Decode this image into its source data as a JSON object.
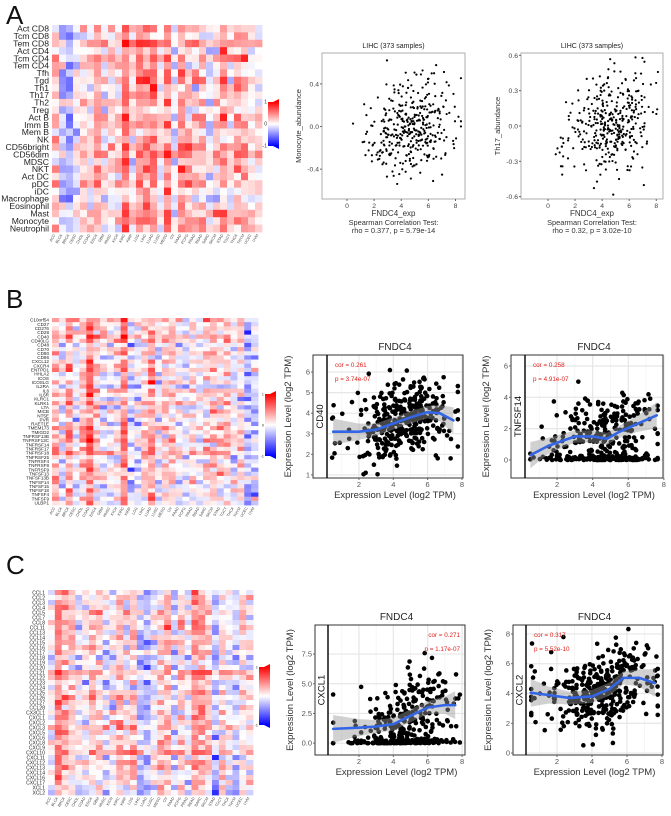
{
  "panel_labels": [
    "A",
    "B",
    "C"
  ],
  "chart_data": [
    {
      "id": "heatmap-a",
      "type": "heatmap",
      "rows": [
        "Act CD8",
        "Tcm CD8",
        "Tem CD8",
        "Act CD4",
        "Tcm CD4",
        "Tem CD4",
        "Tfh",
        "Tgd",
        "Th1",
        "Th17",
        "Th2",
        "Treg",
        "Act B",
        "Imm B",
        "Mem B",
        "NK",
        "CD56bright",
        "CD56dim",
        "MDSC",
        "NKT",
        "Act DC",
        "pDC",
        "iDC",
        "Macrophage",
        "Eosinophil",
        "Mast",
        "Monocyte",
        "Neutrophil"
      ],
      "columns": [
        "ACC",
        "BLCA",
        "BRCA",
        "CESC",
        "CHOL",
        "COAD",
        "ESCA",
        "GBM",
        "HNSC",
        "KICH",
        "KIRC",
        "KIRP",
        "LGG",
        "LIHC",
        "LUAD",
        "LUSC",
        "MESO",
        "OV",
        "PAAD",
        "PCPG",
        "PRAD",
        "READ",
        "SARC",
        "SKCM",
        "STAD",
        "TGCT",
        "THCA",
        "THYM",
        "UCEC",
        "UVM"
      ],
      "colorbar": {
        "max": "1",
        "mid": "0",
        "min": "-1"
      },
      "value_range": [
        -1,
        1
      ],
      "colors": {
        "low": "#0000ff",
        "mid": "#ffffff",
        "high": "#ff0000"
      }
    },
    {
      "id": "scatter-a1",
      "type": "scatter",
      "style": "timer",
      "title": "LIHC (373 samples)",
      "xlabel": "FNDC4_exp",
      "ylabel": "Monocyte_abundance",
      "caption": [
        "Spearman Correlation Test:",
        "rho = 0.377, p = 5.79e-14"
      ],
      "n": 373,
      "rho": 0.377,
      "xlim": [
        -1.84,
        8.7
      ],
      "ylim": [
        -0.68,
        0.69
      ],
      "xticks": [
        "0",
        "2",
        "4",
        "6",
        "8"
      ],
      "yticks": [
        "-0.4",
        "0.0",
        "0.4"
      ]
    },
    {
      "id": "scatter-a2",
      "type": "scatter",
      "style": "timer",
      "title": "LIHC (373 samples)",
      "xlabel": "FNDC4_exp",
      "ylabel": "Th17_abundance",
      "caption": [
        "Spearman Correlation Test:",
        "rho = 0.32, p = 3.02e-10"
      ],
      "n": 373,
      "rho": 0.32,
      "xlim": [
        -2.0,
        8.5
      ],
      "ylim": [
        -0.62,
        0.62
      ],
      "xticks": [
        "0",
        "2",
        "4",
        "6",
        "8"
      ],
      "yticks": [
        "-0.6",
        "-0.3",
        "0.0",
        "0.3",
        "0.6"
      ]
    },
    {
      "id": "heatmap-b",
      "type": "heatmap",
      "rows": [
        "C10orf54",
        "CD27",
        "CD276",
        "CD28",
        "CD40",
        "CD40LG",
        "CD48",
        "CD70",
        "CD80",
        "CD86",
        "CXCL12",
        "CXCR4",
        "ENTPD1",
        "HHLA2",
        "ICOS",
        "ICOSLG",
        "IL2RA",
        "IL6",
        "IL6R",
        "KLRC1",
        "KLRK1",
        "LTA",
        "MICB",
        "NT5E",
        "PVR",
        "RAET1E",
        "TMEM173",
        "TMIGD2",
        "TNFRSF13B",
        "TNFRSF13C",
        "TNFRSF14",
        "TNFRSF17",
        "TNFRSF18",
        "TNFRSF25",
        "TNFRSF4",
        "TNFRSF8",
        "TNFRSF9",
        "TNFSF13",
        "TNFSF13B",
        "TNFSF14",
        "TNFSF15",
        "TNFSF18",
        "TNFSF4",
        "TNFSF9",
        "ULBP1"
      ],
      "columns": [
        "ACC",
        "BLCA",
        "BRCA",
        "CESC",
        "CHOL",
        "COAD",
        "ESCA",
        "GBM",
        "HNSC",
        "KICH",
        "KIRC",
        "KIRP",
        "LGG",
        "LIHC",
        "LUAD",
        "LUSC",
        "MESO",
        "OV",
        "PAAD",
        "PCPG",
        "PRAD",
        "READ",
        "SARC",
        "SKCM",
        "STAD",
        "TGCT",
        "THCA",
        "THYM",
        "UCEC",
        "UVM"
      ],
      "colorbar": {
        "max": "1",
        "mid": "0",
        "min": "-1"
      },
      "value_range": [
        -1,
        1
      ],
      "colors": {
        "low": "#0000ff",
        "mid": "#ffffff",
        "high": "#ff0000"
      }
    },
    {
      "id": "scatter-b1",
      "type": "scatter",
      "style": "gepia",
      "title": "FNDC4",
      "xlabel": "Expression Level (log2 TPM)",
      "ylabel": "Expression Level (log2 TPM)",
      "strip": "CD40",
      "stats": [
        "cor = 0.261",
        "p = 3.74e-07"
      ],
      "stats_position": "top-left",
      "n": 373,
      "xlim": [
        0.14,
        8.06
      ],
      "ylim": [
        0.85,
        6.83
      ],
      "xticks": [
        "2",
        "4",
        "6",
        "8"
      ],
      "yticks": [
        "1",
        "2",
        "3",
        "4",
        "5",
        "6"
      ],
      "trend": [
        [
          0.5,
          3.1
        ],
        [
          2,
          3.1
        ],
        [
          3,
          3.2
        ],
        [
          4,
          3.5
        ],
        [
          5,
          3.8
        ],
        [
          6,
          4.05
        ],
        [
          6.7,
          4.0
        ],
        [
          7.5,
          3.65
        ]
      ],
      "line_color": "#3366e6"
    },
    {
      "id": "scatter-b2",
      "type": "scatter",
      "style": "gepia",
      "title": "FNDC4",
      "xlabel": "Expression Level (log2 TPM)",
      "ylabel": "Expression Level (log2 TPM)",
      "strip": "TNFSF14",
      "stats": [
        "cor = 0.258",
        "p = 4.91e-07"
      ],
      "stats_position": "top-left",
      "n": 373,
      "xlim": [
        0.2,
        7.95
      ],
      "ylim": [
        -1.15,
        6.7
      ],
      "xticks": [
        "2",
        "4",
        "6",
        "8"
      ],
      "yticks": [
        "0",
        "2",
        "4",
        "6"
      ],
      "trend": [
        [
          0.5,
          0.3
        ],
        [
          1.5,
          0.9
        ],
        [
          3,
          1.5
        ],
        [
          4,
          1.5
        ],
        [
          4.8,
          1.35
        ],
        [
          5.5,
          1.8
        ],
        [
          6.5,
          2.3
        ],
        [
          7.6,
          2.85
        ]
      ],
      "line_color": "#3366e6"
    },
    {
      "id": "heatmap-c",
      "type": "heatmap",
      "rows": [
        "CCL1",
        "CCL2",
        "CCL3",
        "CCL4",
        "CCL5",
        "CCL7",
        "CCL8",
        "CCL11",
        "CCL13",
        "CCL14",
        "CCL15",
        "CCL16",
        "CCL17",
        "CCL18",
        "CCL19",
        "CCL20",
        "CCL21",
        "CCL22",
        "CCL23",
        "CCL24",
        "CCL25",
        "CCL26",
        "CCL27",
        "CCL28",
        "CX3CL1",
        "CXCL1",
        "CXCL2",
        "CXCL3",
        "CXCL5",
        "CXCL6",
        "CXCL8",
        "CXCL9",
        "CXCL10",
        "CXCL11",
        "CXCL12",
        "CXCL13",
        "CXCL14",
        "CXCL16",
        "CXCL17",
        "XCL1",
        "XCL2"
      ],
      "columns": [
        "ACC",
        "BLCA",
        "BRCA",
        "CESC",
        "CHOL",
        "COAD",
        "ESCA",
        "GBM",
        "HNSC",
        "KICH",
        "KIRC",
        "KIRP",
        "LGG",
        "LIHC",
        "LUAD",
        "LUSC",
        "MESO",
        "OV",
        "PAAD",
        "PCPG",
        "PRAD",
        "READ",
        "SARC",
        "SKCM",
        "STAD",
        "TGCT",
        "THCA",
        "THYM",
        "UCEC",
        "UVM"
      ],
      "colorbar": {
        "max": "1",
        "mid": "",
        "min": "-1"
      },
      "value_range": [
        -1,
        1
      ],
      "colors": {
        "low": "#0000ff",
        "mid": "#ffffff",
        "high": "#ff0000"
      }
    },
    {
      "id": "scatter-c1",
      "type": "scatter",
      "style": "gepia",
      "title": "FNDC4",
      "xlabel": "Expression Level (log2 TPM)",
      "ylabel": "Expression Level (log2 TPM)",
      "strip": "CXCL1",
      "stats": [
        "cor = 0.271",
        "p = 1.17e-07"
      ],
      "stats_position": "top-right",
      "n": 373,
      "xlim": [
        0.2,
        8.17
      ],
      "ylim": [
        -1.0,
        9.95
      ],
      "xticks": [
        "2",
        "4",
        "6",
        "8"
      ],
      "yticks": [
        "0.0",
        "2.5",
        "5.0",
        "7.5"
      ],
      "trend": [
        [
          0.5,
          1.2
        ],
        [
          2,
          1.3
        ],
        [
          3,
          1.4
        ],
        [
          4,
          1.6
        ],
        [
          5,
          2.3
        ],
        [
          6,
          3.0
        ],
        [
          7,
          3.2
        ],
        [
          7.6,
          3.2
        ]
      ],
      "line_color": "#3366e6"
    },
    {
      "id": "scatter-c2",
      "type": "scatter",
      "style": "gepia",
      "title": "FNDC4",
      "xlabel": "Expression Level (log2 TPM)",
      "ylabel": "Expression Level (log2 TPM)",
      "strip": "CXCL2",
      "stats": [
        "cor = 0.317",
        "p = 5.52e-10"
      ],
      "stats_position": "top-left",
      "n": 373,
      "xlim": [
        0.23,
        8.06
      ],
      "ylim": [
        -0.13,
        8.6
      ],
      "xticks": [
        "2",
        "4",
        "6",
        "8"
      ],
      "yticks": [
        "0",
        "2",
        "4",
        "6",
        "8"
      ],
      "trend": [
        [
          0.5,
          4.05
        ],
        [
          1.5,
          3.9
        ],
        [
          2.7,
          3.7
        ],
        [
          4,
          3.8
        ],
        [
          5,
          4.3
        ],
        [
          5.8,
          5.05
        ],
        [
          6.7,
          5.05
        ],
        [
          7.6,
          4.7
        ]
      ],
      "line_color": "#3366e6"
    }
  ]
}
